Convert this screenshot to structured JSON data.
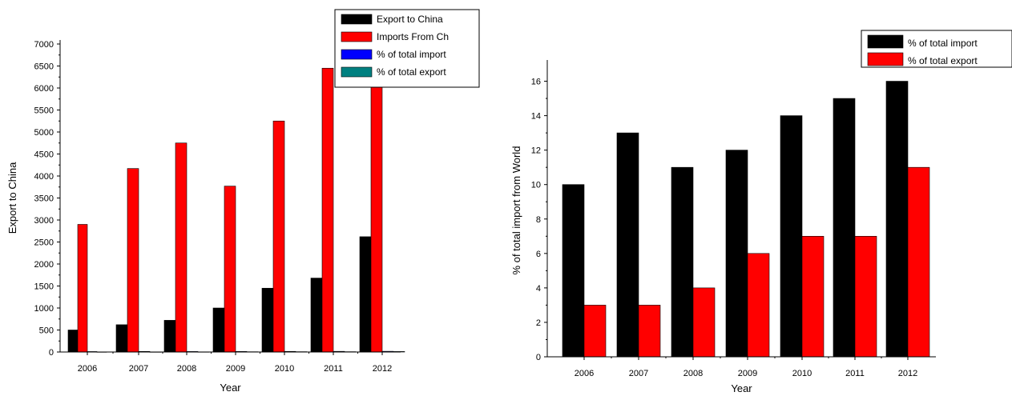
{
  "colors": {
    "black": "#000000",
    "red": "#ff0000",
    "blue": "#0000ff",
    "teal": "#008080"
  },
  "chart_data": [
    {
      "type": "bar",
      "xlabel": "Year",
      "ylabel": "Export to China",
      "ylim": [
        0,
        7000
      ],
      "yticks": [
        0,
        500,
        1000,
        1500,
        2000,
        2500,
        3000,
        3500,
        4000,
        4500,
        5000,
        5500,
        6000,
        6500,
        7000
      ],
      "categories": [
        "2006",
        "2007",
        "2008",
        "2009",
        "2010",
        "2011",
        "2012"
      ],
      "series": [
        {
          "name": "Export to China",
          "color": "#000000",
          "values": [
            500,
            620,
            720,
            1000,
            1450,
            1680,
            2620
          ]
        },
        {
          "name": "Imports From Ch",
          "color": "#ff0000",
          "values": [
            2900,
            4170,
            4750,
            3770,
            5250,
            6450,
            6450
          ]
        },
        {
          "name": "% of total import",
          "color": "#0000ff",
          "values": [
            10,
            13,
            11,
            12,
            14,
            15,
            16
          ]
        },
        {
          "name": "% of total export",
          "color": "#008080",
          "values": [
            3,
            3,
            4,
            6,
            7,
            7,
            11
          ]
        }
      ],
      "legend_position": "top-right"
    },
    {
      "type": "bar",
      "xlabel": "Year",
      "ylabel": "% of total import from World",
      "ylim": [
        0,
        17
      ],
      "yticks": [
        0,
        2,
        4,
        6,
        8,
        10,
        12,
        14,
        16
      ],
      "categories": [
        "2006",
        "2007",
        "2008",
        "2009",
        "2010",
        "2011",
        "2012"
      ],
      "series": [
        {
          "name": "% of total import",
          "color": "#000000",
          "values": [
            10,
            13,
            11,
            12,
            14,
            15,
            16
          ]
        },
        {
          "name": "% of total export",
          "color": "#ff0000",
          "values": [
            3,
            3,
            4,
            6,
            7,
            7,
            11
          ]
        }
      ],
      "legend_position": "top-right"
    }
  ]
}
